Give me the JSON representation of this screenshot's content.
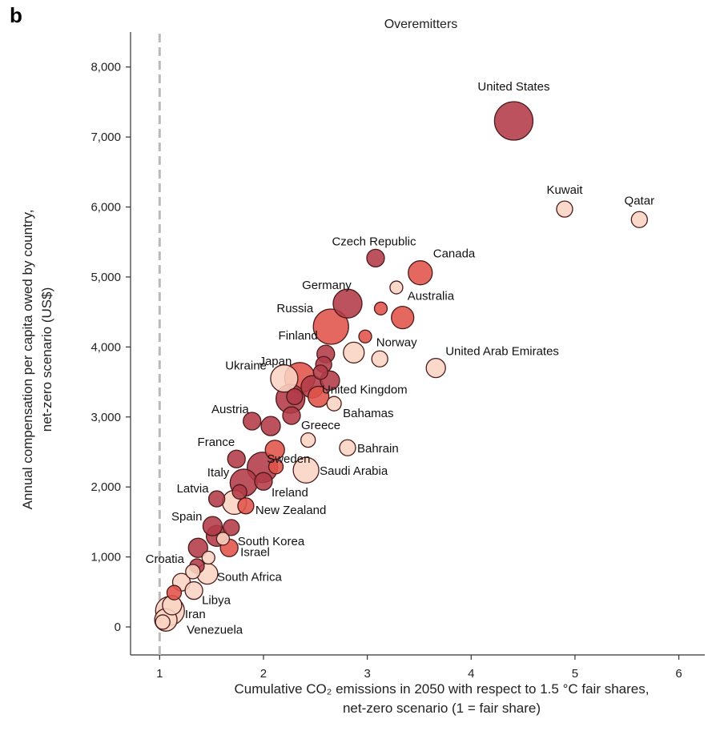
{
  "chart_data": {
    "type": "scatter",
    "panel_letter": "b",
    "title": "Overemitters",
    "xlabel_lines": [
      "Cumulative CO₂ emissions in 2050 with respect to 1.5 °C fair shares,",
      "net-zero scenario (1 = fair share)"
    ],
    "ylabel_lines": [
      "Annual compensation per capita owed by country,",
      "net-zero scenario (US$)"
    ],
    "xlim": [
      0.72,
      6.25
    ],
    "ylim": [
      -400,
      8500
    ],
    "x_ticks": [
      1,
      2,
      3,
      4,
      5,
      6
    ],
    "x_tick_labels": [
      "1",
      "2",
      "3",
      "4",
      "5",
      "6"
    ],
    "y_ticks": [
      0,
      1000,
      2000,
      3000,
      4000,
      5000,
      6000,
      7000,
      8000
    ],
    "y_tick_labels": [
      "0",
      "1,000",
      "2,000",
      "3,000",
      "4,000",
      "5,000",
      "6,000",
      "7,000",
      "8,000"
    ],
    "reference_line_x": 1,
    "grid": false,
    "colors": {
      "dark": "#b23a48",
      "mid": "#e0534a",
      "light": "#f4a58a",
      "pale": "#fbd4c3",
      "edge": "#4a1a1a",
      "refline": "#bbbbbb"
    },
    "points": [
      {
        "label": "United States",
        "x": 4.41,
        "y": 7230,
        "size": 24,
        "color": "dark"
      },
      {
        "label": "Kuwait",
        "x": 4.9,
        "y": 5970,
        "size": 10,
        "color": "pale"
      },
      {
        "label": "Qatar",
        "x": 5.62,
        "y": 5820,
        "size": 10,
        "color": "pale"
      },
      {
        "label": "Czech Republic",
        "x": 3.08,
        "y": 5270,
        "size": 11,
        "color": "dark"
      },
      {
        "label": "Canada",
        "x": 3.51,
        "y": 5060,
        "size": 15,
        "color": "mid"
      },
      {
        "label": "",
        "x": 3.28,
        "y": 4850,
        "size": 8,
        "color": "pale"
      },
      {
        "label": "Germany",
        "x": 2.81,
        "y": 4620,
        "size": 18,
        "color": "dark"
      },
      {
        "label": "",
        "x": 3.13,
        "y": 4550,
        "size": 8,
        "color": "mid"
      },
      {
        "label": "Australia",
        "x": 3.34,
        "y": 4420,
        "size": 14,
        "color": "mid"
      },
      {
        "label": "Russia",
        "x": 2.65,
        "y": 4290,
        "size": 22,
        "color": "mid"
      },
      {
        "label": "",
        "x": 2.98,
        "y": 4150,
        "size": 8,
        "color": "mid"
      },
      {
        "label": "Norway",
        "x": 2.87,
        "y": 3920,
        "size": 13,
        "color": "pale"
      },
      {
        "label": "",
        "x": 3.12,
        "y": 3830,
        "size": 10,
        "color": "pale"
      },
      {
        "label": "United Arab Emirates",
        "x": 3.66,
        "y": 3700,
        "size": 12,
        "color": "pale"
      },
      {
        "label": "Finland",
        "x": 2.6,
        "y": 3900,
        "size": 11,
        "color": "dark"
      },
      {
        "label": "",
        "x": 2.58,
        "y": 3750,
        "size": 10,
        "color": "dark"
      },
      {
        "label": "Japan",
        "x": 2.35,
        "y": 3560,
        "size": 19,
        "color": "mid"
      },
      {
        "label": "Ukraine",
        "x": 2.2,
        "y": 3550,
        "size": 17,
        "color": "pale"
      },
      {
        "label": "",
        "x": 2.55,
        "y": 3640,
        "size": 9,
        "color": "dark"
      },
      {
        "label": "United Kingdom",
        "x": 2.64,
        "y": 3520,
        "size": 12,
        "color": "dark"
      },
      {
        "label": "",
        "x": 2.47,
        "y": 3430,
        "size": 14,
        "color": "dark"
      },
      {
        "label": "",
        "x": 2.53,
        "y": 3290,
        "size": 13,
        "color": "mid"
      },
      {
        "label": "Bahamas",
        "x": 2.68,
        "y": 3190,
        "size": 9,
        "color": "pale"
      },
      {
        "label": "",
        "x": 2.26,
        "y": 3260,
        "size": 18,
        "color": "dark"
      },
      {
        "label": "",
        "x": 2.3,
        "y": 3290,
        "size": 10,
        "color": "dark"
      },
      {
        "label": "Austria",
        "x": 1.89,
        "y": 2940,
        "size": 11,
        "color": "dark"
      },
      {
        "label": "",
        "x": 2.07,
        "y": 2870,
        "size": 12,
        "color": "dark"
      },
      {
        "label": "Greece",
        "x": 2.27,
        "y": 3020,
        "size": 11,
        "color": "dark"
      },
      {
        "label": "",
        "x": 2.43,
        "y": 2670,
        "size": 9,
        "color": "pale"
      },
      {
        "label": "Bahrain",
        "x": 2.81,
        "y": 2560,
        "size": 10,
        "color": "pale"
      },
      {
        "label": "France",
        "x": 1.74,
        "y": 2400,
        "size": 11,
        "color": "dark"
      },
      {
        "label": "Sweden",
        "x": 2.11,
        "y": 2530,
        "size": 12,
        "color": "mid"
      },
      {
        "label": "",
        "x": 1.99,
        "y": 2280,
        "size": 19,
        "color": "dark"
      },
      {
        "label": "",
        "x": 2.12,
        "y": 2290,
        "size": 9,
        "color": "mid"
      },
      {
        "label": "Saudi Arabia",
        "x": 2.41,
        "y": 2240,
        "size": 16,
        "color": "pale"
      },
      {
        "label": "Italy",
        "x": 1.81,
        "y": 2060,
        "size": 17,
        "color": "dark"
      },
      {
        "label": "Ireland",
        "x": 2.0,
        "y": 2080,
        "size": 11,
        "color": "dark"
      },
      {
        "label": "Latvia",
        "x": 1.55,
        "y": 1830,
        "size": 10,
        "color": "dark"
      },
      {
        "label": "",
        "x": 1.77,
        "y": 1930,
        "size": 9,
        "color": "dark"
      },
      {
        "label": "",
        "x": 1.72,
        "y": 1780,
        "size": 15,
        "color": "pale"
      },
      {
        "label": "New Zealand",
        "x": 1.83,
        "y": 1730,
        "size": 10,
        "color": "mid"
      },
      {
        "label": "Spain",
        "x": 1.51,
        "y": 1440,
        "size": 12,
        "color": "dark"
      },
      {
        "label": "South Korea",
        "x": 1.69,
        "y": 1420,
        "size": 10,
        "color": "dark"
      },
      {
        "label": "",
        "x": 1.55,
        "y": 1300,
        "size": 13,
        "color": "dark"
      },
      {
        "label": "",
        "x": 1.61,
        "y": 1260,
        "size": 8,
        "color": "pale"
      },
      {
        "label": "Israel",
        "x": 1.67,
        "y": 1130,
        "size": 11,
        "color": "mid"
      },
      {
        "label": "",
        "x": 1.37,
        "y": 1130,
        "size": 12,
        "color": "dark"
      },
      {
        "label": "",
        "x": 1.47,
        "y": 990,
        "size": 8,
        "color": "pale"
      },
      {
        "label": "Croatia",
        "x": 1.36,
        "y": 870,
        "size": 9,
        "color": "dark"
      },
      {
        "label": "South Africa",
        "x": 1.46,
        "y": 760,
        "size": 13,
        "color": "pale"
      },
      {
        "label": "",
        "x": 1.32,
        "y": 790,
        "size": 9,
        "color": "pale"
      },
      {
        "label": "",
        "x": 1.21,
        "y": 640,
        "size": 11,
        "color": "pale"
      },
      {
        "label": "Libya",
        "x": 1.33,
        "y": 520,
        "size": 11,
        "color": "pale"
      },
      {
        "label": "",
        "x": 1.14,
        "y": 490,
        "size": 9,
        "color": "mid"
      },
      {
        "label": "Iran",
        "x": 1.12,
        "y": 310,
        "size": 12,
        "color": "pale"
      },
      {
        "label": "",
        "x": 1.1,
        "y": 230,
        "size": 18,
        "color": "pale"
      },
      {
        "label": "Venezuela",
        "x": 1.06,
        "y": 100,
        "size": 14,
        "color": "pale"
      },
      {
        "label": "",
        "x": 1.03,
        "y": 70,
        "size": 9,
        "color": "pale"
      }
    ]
  }
}
